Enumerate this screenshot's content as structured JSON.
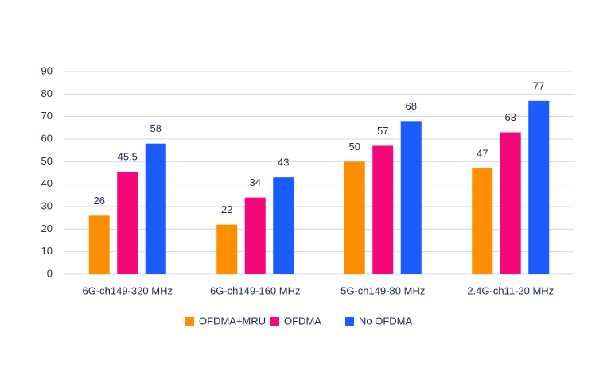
{
  "chart_data": {
    "type": "bar",
    "categories": [
      "6G-ch149-320 MHz",
      "6G-ch149-160 MHz",
      "5G-ch149-80 MHz",
      "2.4G-ch11-20 MHz"
    ],
    "series": [
      {
        "name": "OFDMA+MRU",
        "color": "#ff8f00",
        "values": [
          26,
          22,
          50,
          47
        ]
      },
      {
        "name": "OFDMA",
        "color": "#f5077a",
        "values": [
          45.5,
          34,
          57,
          63
        ]
      },
      {
        "name": "No OFDMA",
        "color": "#1a5cff",
        "values": [
          58,
          43,
          68,
          77
        ]
      }
    ],
    "ylim": [
      0,
      90
    ],
    "yticks": [
      0,
      10,
      20,
      30,
      40,
      50,
      60,
      70,
      80,
      90
    ],
    "grid": true,
    "legend": "bottom"
  }
}
